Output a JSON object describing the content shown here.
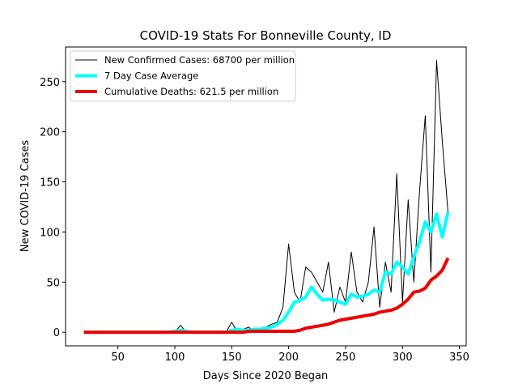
{
  "chart_data": {
    "type": "line",
    "title": "COVID-19 Stats For Bonneville County, ID",
    "xlabel": "Days Since 2020 Began",
    "ylabel": "New COVID-19 Cases",
    "x": [
      20,
      25,
      30,
      35,
      40,
      45,
      50,
      55,
      60,
      65,
      70,
      75,
      80,
      85,
      90,
      95,
      100,
      105,
      110,
      115,
      120,
      125,
      130,
      135,
      140,
      145,
      150,
      155,
      160,
      165,
      170,
      175,
      180,
      185,
      190,
      195,
      200,
      205,
      210,
      215,
      220,
      225,
      230,
      235,
      240,
      245,
      250,
      255,
      260,
      265,
      270,
      275,
      280,
      285,
      290,
      295,
      300,
      305,
      310,
      315,
      320,
      325,
      330,
      335,
      340
    ],
    "series": [
      {
        "name": "New Confirmed Cases: 68700 per million",
        "color": "#000000",
        "width": 1,
        "values": [
          0,
          0,
          0,
          0,
          0,
          0,
          0,
          0,
          0,
          0,
          0,
          0,
          0,
          0,
          0,
          0,
          0,
          7,
          0,
          0,
          0,
          0,
          0,
          0,
          0,
          0,
          10,
          0,
          3,
          5,
          0,
          4,
          5,
          8,
          10,
          25,
          88,
          40,
          30,
          65,
          60,
          50,
          40,
          70,
          20,
          45,
          30,
          80,
          40,
          30,
          50,
          105,
          25,
          70,
          40,
          158,
          30,
          132,
          50,
          140,
          216,
          60,
          271,
          190,
          120
        ]
      },
      {
        "name": "7 Day Case Average",
        "color": "#00ffff",
        "width": 4,
        "values": [
          0,
          0,
          0,
          0,
          0,
          0,
          0,
          0,
          0,
          0,
          0,
          0,
          0,
          0,
          0,
          0,
          1,
          2,
          1,
          0,
          0,
          0,
          0,
          0,
          0,
          0,
          2,
          3,
          2,
          2,
          3,
          3,
          4,
          5,
          8,
          12,
          20,
          30,
          32,
          35,
          45,
          38,
          32,
          33,
          32,
          30,
          28,
          38,
          35,
          36,
          38,
          42,
          40,
          60,
          58,
          70,
          65,
          58,
          75,
          90,
          110,
          100,
          118,
          95,
          120
        ]
      },
      {
        "name": "Cumulative Deaths: 621.5 per million",
        "color": "#ee0000",
        "width": 4,
        "values": [
          0,
          0,
          0,
          0,
          0,
          0,
          0,
          0,
          0,
          0,
          0,
          0,
          0,
          0,
          0,
          0,
          0,
          0,
          0,
          0,
          0,
          0,
          0,
          0,
          0,
          0,
          0,
          0,
          0,
          1,
          1,
          1,
          1,
          1,
          1,
          1,
          1,
          1,
          2,
          4,
          5,
          6,
          7,
          8,
          10,
          12,
          13,
          14,
          15,
          16,
          17,
          18,
          20,
          21,
          22,
          24,
          28,
          33,
          40,
          41,
          44,
          52,
          56,
          62,
          74
        ]
      }
    ],
    "xlim": [
      4,
      356
    ],
    "xticks": [
      50,
      100,
      150,
      200,
      250,
      300,
      350
    ],
    "ylim": [
      -13.55,
      284.55
    ],
    "yticks": [
      0,
      50,
      100,
      150,
      200,
      250
    ],
    "legend": "upper left"
  }
}
